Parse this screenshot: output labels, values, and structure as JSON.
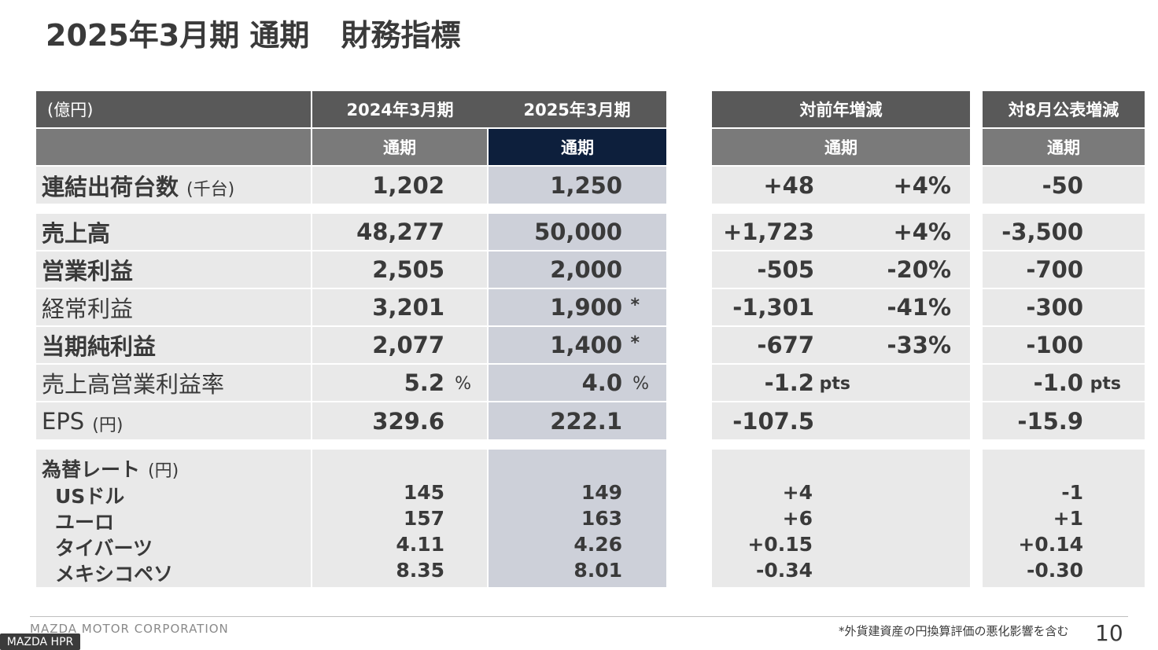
{
  "title": {
    "part1": "2025年3月期 通期",
    "part2": "財務指標"
  },
  "header": {
    "unit": "(億円)",
    "prev_year": "2024年3月期",
    "curr_year": "2025年3月期",
    "yoy": "対前年増減",
    "vs_aug": "対8月公表増減",
    "full_year": "通期"
  },
  "rows": {
    "shipments": {
      "label": "連結出荷台数",
      "unit": "(千台)",
      "prev": "1,202",
      "curr": "1,250",
      "yoy": "+48",
      "yoy_pct": "+4%",
      "vs": "-50"
    },
    "revenue": {
      "label": "売上高",
      "prev": "48,277",
      "curr": "50,000",
      "yoy": "+1,723",
      "yoy_pct": "+4%",
      "vs": "-3,500"
    },
    "op_income": {
      "label": "営業利益",
      "prev": "2,505",
      "curr": "2,000",
      "yoy": "-505",
      "yoy_pct": "-20%",
      "vs": "-700"
    },
    "ordinary": {
      "label": "経常利益",
      "prev": "3,201",
      "curr": "1,900",
      "curr_mark": "*",
      "yoy": "-1,301",
      "yoy_pct": "-41%",
      "vs": "-300"
    },
    "net_income": {
      "label": "当期純利益",
      "prev": "2,077",
      "curr": "1,400",
      "curr_mark": "*",
      "yoy": "-677",
      "yoy_pct": "-33%",
      "vs": "-100"
    },
    "op_margin": {
      "label": "売上高営業利益率",
      "prev": "5.2",
      "prev_unit": "%",
      "curr": "4.0",
      "curr_unit": "%",
      "yoy": "-1.2",
      "yoy_unit": "pts",
      "vs": "-1.0",
      "vs_unit": "pts"
    },
    "eps": {
      "label": "EPS",
      "unit": "(円)",
      "prev": "329.6",
      "curr": "222.1",
      "yoy": "-107.5",
      "vs": "-15.9"
    }
  },
  "fx": {
    "label": "為替レート",
    "unit": "(円)",
    "items": [
      {
        "name": "USドル",
        "prev": "145",
        "curr": "149",
        "yoy": "+4",
        "vs": "-1"
      },
      {
        "name": "ユーロ",
        "prev": "157",
        "curr": "163",
        "yoy": "+6",
        "vs": "+1"
      },
      {
        "name": "タイバーツ",
        "prev": "4.11",
        "curr": "4.26",
        "yoy": "+0.15",
        "vs": "+0.14"
      },
      {
        "name": "メキシコペソ",
        "prev": "8.35",
        "curr": "8.01",
        "yoy": "-0.34",
        "vs": "-0.30"
      }
    ]
  },
  "footer": {
    "company": "MAZDA MOTOR CORPORATION",
    "note": "*外貨建資産の円換算評価の悪化影響を含む",
    "page": "10",
    "watermark": "MAZDA HPR"
  },
  "colors": {
    "header_gray": "#595959",
    "header_dark": "#0d1f3c",
    "cell_gray": "#e9e9e9",
    "cell_highlight": "#cdd0d9"
  }
}
